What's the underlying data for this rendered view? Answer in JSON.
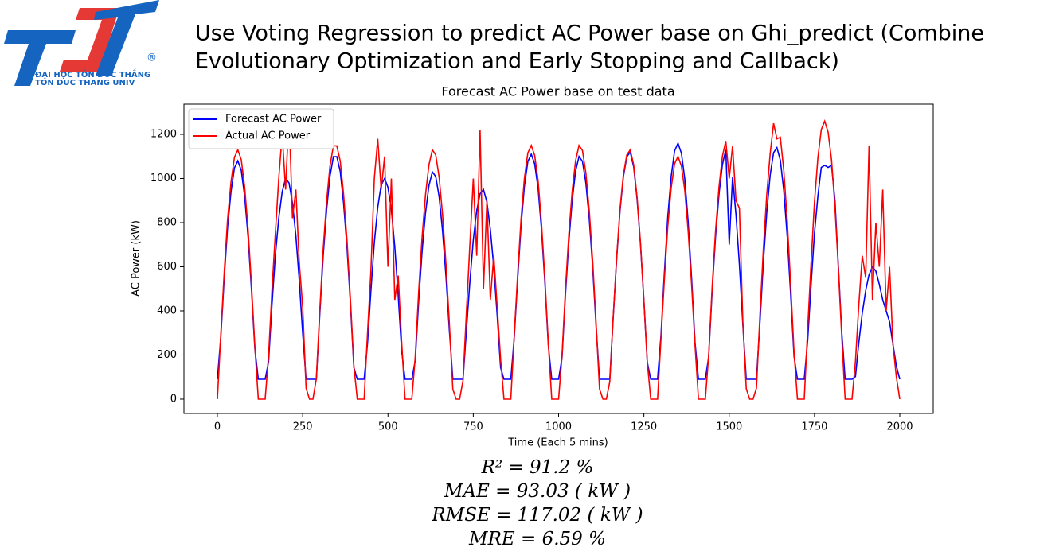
{
  "header": {
    "title_lines": [
      "Use Voting Regression to predict AC Power base on Ghi_predict (Combine",
      "Evolutionary Optimization and Early Stopping and Callback)"
    ]
  },
  "logo": {
    "mark": "®",
    "line1": "ĐẠI HỌC TÔN ĐỨC THẮNG",
    "line2": "TON DUC THANG UNIV"
  },
  "chart_data": {
    "type": "line",
    "title": "Forecast AC Power base on test data",
    "x_label": "Time (Each 5 mins)",
    "y_label": "AC Power (kW)",
    "xlim": [
      -98,
      2098
    ],
    "ylim": [
      -65,
      1337
    ],
    "xticks": [
      0,
      250,
      500,
      750,
      1000,
      1250,
      1500,
      1750,
      2000
    ],
    "yticks": [
      0,
      200,
      400,
      600,
      800,
      1000,
      1200
    ],
    "legend": "upper left",
    "x": [
      0,
      10,
      20,
      30,
      40,
      50,
      60,
      70,
      80,
      90,
      100,
      110,
      120,
      130,
      140,
      150,
      160,
      170,
      180,
      190,
      200,
      210,
      220,
      230,
      240,
      250,
      260,
      270,
      280,
      290,
      300,
      310,
      320,
      330,
      340,
      350,
      360,
      370,
      380,
      390,
      400,
      410,
      420,
      430,
      440,
      450,
      460,
      470,
      480,
      490,
      500,
      510,
      520,
      530,
      540,
      550,
      560,
      570,
      580,
      590,
      600,
      610,
      620,
      630,
      640,
      650,
      660,
      670,
      680,
      690,
      700,
      710,
      720,
      730,
      740,
      750,
      760,
      770,
      780,
      790,
      800,
      810,
      820,
      830,
      840,
      850,
      860,
      870,
      880,
      890,
      900,
      910,
      920,
      930,
      940,
      950,
      960,
      970,
      980,
      990,
      1000,
      1010,
      1020,
      1030,
      1040,
      1050,
      1060,
      1070,
      1080,
      1090,
      1100,
      1110,
      1120,
      1130,
      1140,
      1150,
      1160,
      1170,
      1180,
      1190,
      1200,
      1210,
      1220,
      1230,
      1240,
      1250,
      1260,
      1270,
      1280,
      1290,
      1300,
      1310,
      1320,
      1330,
      1340,
      1350,
      1360,
      1370,
      1380,
      1390,
      1400,
      1410,
      1420,
      1430,
      1440,
      1450,
      1460,
      1470,
      1480,
      1490,
      1500,
      1510,
      1520,
      1530,
      1540,
      1550,
      1560,
      1570,
      1580,
      1590,
      1600,
      1610,
      1620,
      1630,
      1640,
      1650,
      1660,
      1670,
      1680,
      1690,
      1700,
      1710,
      1720,
      1730,
      1740,
      1750,
      1760,
      1770,
      1780,
      1790,
      1800,
      1810,
      1820,
      1830,
      1840,
      1850,
      1860,
      1870,
      1880,
      1890,
      1900,
      1910,
      1920,
      1930,
      1940,
      1950,
      1960,
      1970,
      1980,
      1990,
      2000
    ],
    "series": [
      {
        "name": "Forecast AC Power",
        "color": "#0000ff",
        "values": [
          90,
          281,
          551,
          778,
          940,
          1048,
          1080,
          1037,
          918,
          734,
          497,
          227,
          90,
          90,
          90,
          170,
          430,
          650,
          820,
          940,
          1000,
          980,
          890,
          740,
          540,
          300,
          90,
          90,
          90,
          90,
          377,
          644,
          855,
          1010,
          1099,
          1099,
          1032,
          888,
          688,
          433,
          144,
          90,
          90,
          90,
          250,
          490,
          710,
          870,
          970,
          1000,
          960,
          860,
          690,
          470,
          220,
          90,
          90,
          90,
          175,
          443,
          670,
          845,
          968,
          1030,
          1009,
          917,
          762,
          556,
          309,
          90,
          90,
          90,
          90,
          314,
          532,
          722,
          855,
          931,
          950,
          893,
          770,
          599,
          380,
          143,
          90,
          90,
          90,
          278,
          544,
          788,
          966,
          1077,
          1110,
          1066,
          955,
          766,
          522,
          244,
          90,
          90,
          90,
          187,
          473,
          715,
          902,
          1034,
          1100,
          1078,
          979,
          814,
          594,
          330,
          90,
          90,
          90,
          90,
          370,
          627,
          851,
          1008,
          1098,
          1120,
          1053,
          907,
          706,
          448,
          168,
          90,
          90,
          90,
          290,
          568,
          824,
          1009,
          1125,
          1160,
          1114,
          998,
          800,
          545,
          255,
          90,
          90,
          90,
          192,
          486,
          735,
          927,
          1062,
          1130,
          700,
          1006,
          836,
          610,
          339,
          90,
          90,
          90,
          90,
          342,
          616,
          844,
          1015,
          1117,
          1140,
          1083,
          946,
          741,
          479,
          194,
          90,
          90,
          90,
          265,
          519,
          753,
          922,
          1050,
          1060,
          1050,
          1060,
          900,
          600,
          300,
          90,
          90,
          90,
          102,
          258,
          390,
          492,
          564,
          600,
          580,
          520,
          450,
          400,
          350,
          250,
          150,
          90
        ]
      },
      {
        "name": "Actual AC Power",
        "color": "#ff0000",
        "values": [
          0,
          294,
          576,
          814,
          983,
          1096,
          1130,
          1085,
          960,
          768,
          520,
          237,
          0,
          0,
          0,
          196,
          495,
          750,
          1000,
          1200,
          950,
          1300,
          820,
          950,
          620,
          420,
          50,
          0,
          0,
          93,
          394,
          673,
          893,
          1056,
          1148,
          1148,
          1079,
          928,
          719,
          452,
          151,
          0,
          0,
          0,
          295,
          580,
          1000,
          1180,
          950,
          1100,
          600,
          1000,
          450,
          560,
          260,
          0,
          0,
          0,
          192,
          486,
          735,
          927,
          1062,
          1130,
          1107,
          1006,
          836,
          610,
          339,
          45,
          0,
          0,
          84,
          396,
          700,
          1000,
          650,
          1220,
          500,
          900,
          450,
          650,
          420,
          180,
          0,
          0,
          0,
          288,
          564,
          817,
          1001,
          1116,
          1150,
          1104,
          989,
          794,
          541,
          253,
          0,
          0,
          0,
          196,
          495,
          748,
          943,
          1081,
          1150,
          1127,
          1024,
          851,
          621,
          345,
          46,
          0,
          0,
          79,
          373,
          633,
          859,
          1017,
          1107,
          1130,
          1062,
          915,
          712,
          452,
          170,
          0,
          0,
          0,
          275,
          539,
          781,
          957,
          1067,
          1100,
          1056,
          946,
          759,
          517,
          242,
          0,
          0,
          0,
          199,
          503,
          760,
          959,
          1100,
          1170,
          1000,
          1147,
          900,
          866,
          351,
          47,
          0,
          0,
          50,
          375,
          675,
          925,
          1112,
          1250,
          1180,
          1187,
          1037,
          812,
          525,
          212,
          0,
          0,
          0,
          315,
          617,
          895,
          1096,
          1222,
          1260,
          1210,
          1084,
          869,
          592,
          277,
          0,
          0,
          0,
          170,
          430,
          650,
          550,
          1150,
          450,
          800,
          600,
          950,
          400,
          600,
          250,
          100,
          0
        ]
      }
    ]
  },
  "metrics": [
    "R² = 91.2 %",
    "MAE  = 93.03 ( kW )",
    "RMSE  = 117.02 ( kW )",
    "MRE  = 6.59 %"
  ]
}
